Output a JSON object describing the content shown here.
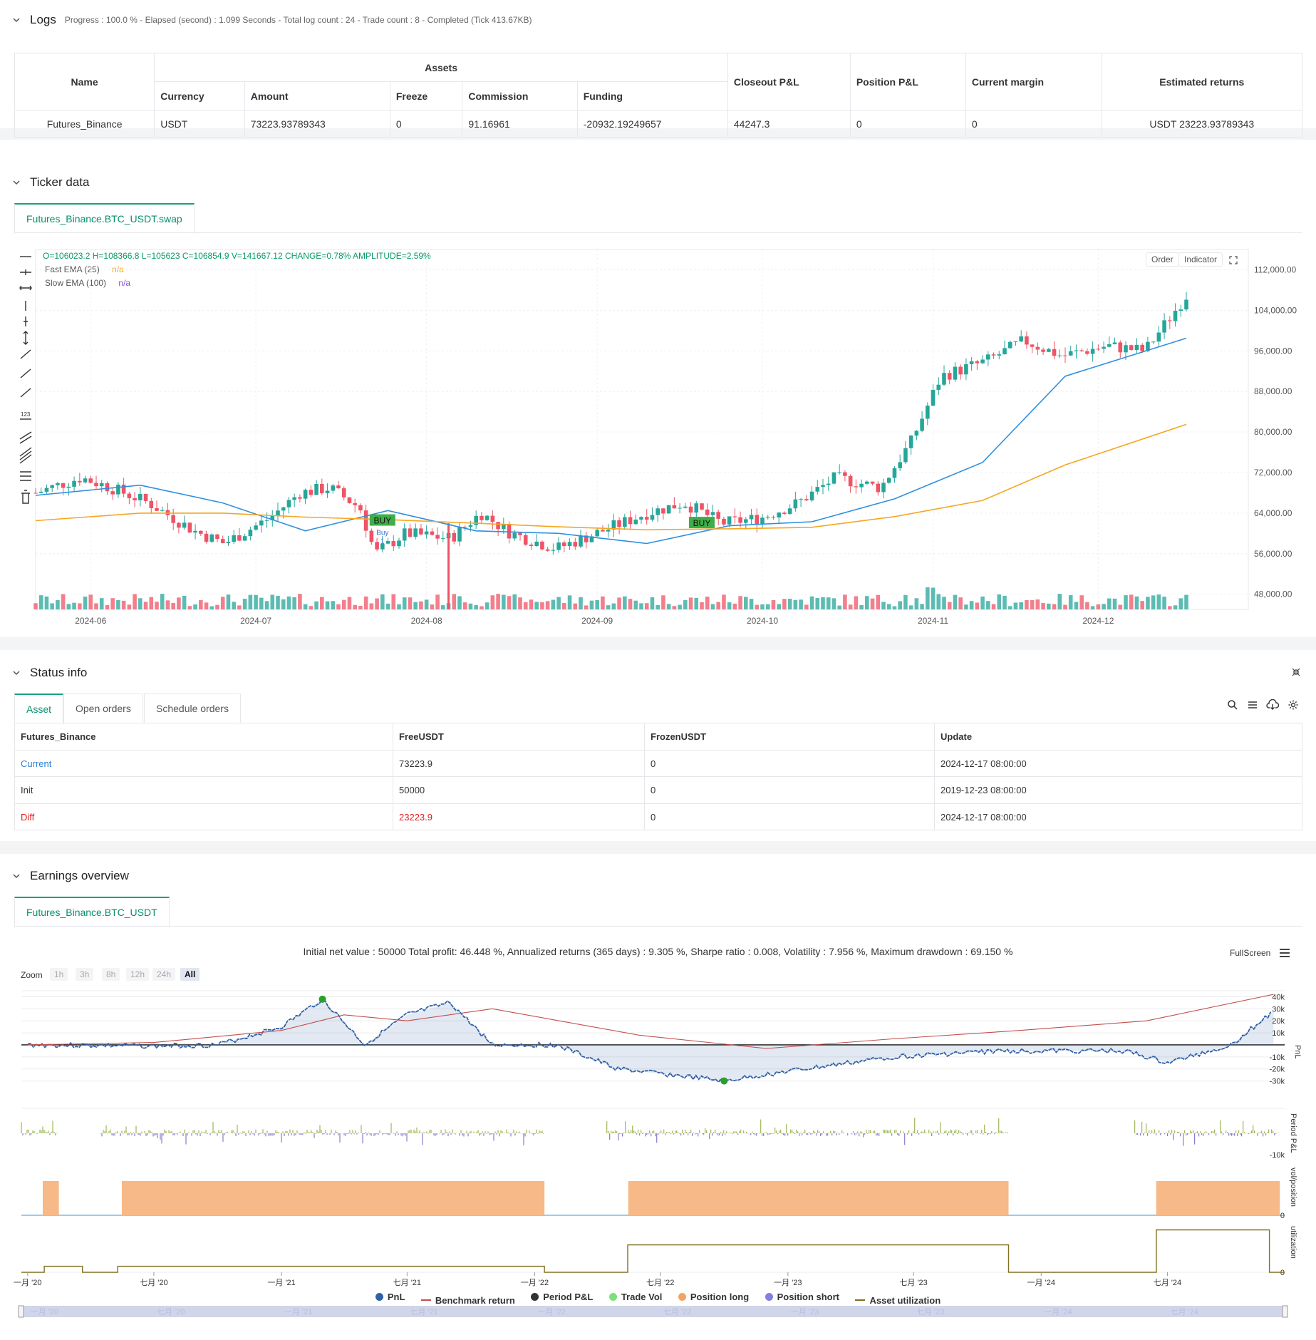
{
  "logs": {
    "title": "Logs",
    "summary": "Progress : 100.0 % - Elapsed (second) : 1.099  Seconds - Total log count : 24 - Trade count : 8 - Completed (Tick 413.67KB)",
    "table": {
      "h_name": "Name",
      "h_assets": "Assets",
      "h_currency": "Currency",
      "h_amount": "Amount",
      "h_freeze": "Freeze",
      "h_commission": "Commission",
      "h_funding": "Funding",
      "h_closeout": "Closeout P&L",
      "h_position": "Position P&L",
      "h_margin": "Current margin",
      "h_returns": "Estimated returns",
      "row": {
        "name": "Futures_Binance",
        "currency": "USDT",
        "amount": "73223.93789343",
        "freeze": "0",
        "commission": "91.16961",
        "funding": "-20932.19249657",
        "closeout": "44247.3",
        "position": "0",
        "margin": "0",
        "returns": "USDT 23223.93789343"
      }
    }
  },
  "ticker": {
    "title": "Ticker data",
    "tab": "Futures_Binance.BTC_USDT.swap",
    "ohlc": "O=106023.2 H=108366.8 L=105623 C=106854.9 V=141667.12 CHANGE=0.78% AMPLITUDE=2.59%",
    "fast_label": "Fast EMA (25)",
    "fast_val": "n/a",
    "slow_label": "Slow EMA (100)",
    "slow_val": "n/a",
    "order_btn": "Order",
    "indicator_btn": "Indicator",
    "buy1": "BUY",
    "buy1_sub": "Buy",
    "buy1_sub2": "1",
    "buy2": "BUY",
    "colors": {
      "up": "#26a69a",
      "down": "#ef5366",
      "fast": "#2f8fe0",
      "slow": "#f5a623"
    }
  },
  "chart_data": [
    {
      "type": "candlestick",
      "y_ticks": [
        "112,000.00",
        "104,000.00",
        "96,000.00",
        "88,000.00",
        "80,000.00",
        "72,000.00",
        "64,000.00",
        "56,000.00",
        "48,000.00"
      ],
      "ylim": [
        45000,
        116000
      ],
      "x_ticks": [
        "2024-06",
        "2024-07",
        "2024-08",
        "2024-09",
        "2024-10",
        "2024-11",
        "2024-12"
      ],
      "series": [
        {
          "name": "Fast EMA (25)",
          "x": [
            "2024-05-22",
            "2024-06-10",
            "2024-06-25",
            "2024-07-10",
            "2024-07-25",
            "2024-08-10",
            "2024-08-25",
            "2024-09-10",
            "2024-09-25",
            "2024-10-10",
            "2024-10-25",
            "2024-11-10",
            "2024-11-25",
            "2024-12-17"
          ],
          "values": [
            67500,
            69500,
            66000,
            60500,
            64500,
            60500,
            60000,
            58000,
            61500,
            62300,
            66800,
            74000,
            91000,
            98500
          ]
        },
        {
          "name": "Slow EMA (100)",
          "x": [
            "2024-05-22",
            "2024-06-10",
            "2024-06-25",
            "2024-07-10",
            "2024-07-25",
            "2024-08-10",
            "2024-08-25",
            "2024-09-10",
            "2024-09-25",
            "2024-10-10",
            "2024-10-25",
            "2024-11-10",
            "2024-11-25",
            "2024-12-17"
          ],
          "values": [
            62500,
            64000,
            64000,
            63200,
            62700,
            62000,
            61300,
            60700,
            60900,
            61200,
            63300,
            66500,
            73500,
            81500
          ]
        }
      ]
    },
    {
      "type": "line",
      "title": "Initial net value : 50000 Total profit: 46.448 %, Annualized returns (365 days) : 9.305 %, Sharpe ratio : 0.008, Volatility : 7.956 %, Maximum drawdown : 69.150 %",
      "x_ticks": [
        "一月 '20",
        "七月 '20",
        "一月 '21",
        "七月 '21",
        "一月 '22",
        "七月 '22",
        "一月 '23",
        "七月 '23",
        "一月 '24",
        "七月 '24"
      ],
      "y_ticks": [
        "40k",
        "30k",
        "20k",
        "10k",
        "0",
        "-10k",
        "-20k",
        "-30k"
      ],
      "ylabel": "PnL",
      "series": [
        {
          "name": "PnL",
          "x": [
            "2020-01",
            "2020-07",
            "2020-10",
            "2021-01",
            "2021-03",
            "2021-05",
            "2021-07",
            "2021-09",
            "2021-11",
            "2022-02",
            "2022-05",
            "2022-08",
            "2022-10",
            "2023-01",
            "2023-06",
            "2023-11",
            "2024-05",
            "2024-07",
            "2024-10",
            "2024-12"
          ],
          "values": [
            0,
            -1000,
            0,
            15000,
            38000,
            0,
            25000,
            35000,
            0,
            0,
            -20000,
            -26000,
            -30000,
            -22000,
            -10000,
            -5000,
            -5000,
            -15000,
            0,
            28000
          ]
        },
        {
          "name": "Benchmark return",
          "x": [
            "2020-01",
            "2020-07",
            "2021-01",
            "2021-04",
            "2021-07",
            "2021-11",
            "2022-06",
            "2022-12",
            "2023-06",
            "2023-12",
            "2024-06",
            "2024-12"
          ],
          "values": [
            0,
            2000,
            12000,
            25000,
            20000,
            30000,
            8000,
            -3000,
            5000,
            12000,
            20000,
            42000
          ]
        }
      ]
    }
  ],
  "status": {
    "title": "Status info",
    "tabs": [
      "Asset",
      "Open orders",
      "Schedule orders"
    ],
    "cols": [
      "Futures_Binance",
      "FreeUSDT",
      "FrozenUSDT",
      "Update"
    ],
    "rows": [
      {
        "label": "Current",
        "free": "73223.9",
        "frozen": "0",
        "update": "2024-12-17 08:00:00"
      },
      {
        "label": "Init",
        "free": "50000",
        "frozen": "0",
        "update": "2019-12-23 08:00:00"
      },
      {
        "label": "Diff",
        "free": "23223.9",
        "frozen": "0",
        "update": "2024-12-17 08:00:00"
      }
    ]
  },
  "earnings": {
    "title": "Earnings overview",
    "tab": "Futures_Binance.BTC_USDT",
    "fullscreen": "FullScreen",
    "zoom_label": "Zoom",
    "zoom": [
      "1h",
      "3h",
      "8h",
      "12h",
      "24h",
      "All"
    ],
    "axis_labels": {
      "pnl": "PnL",
      "period": "Period P&L",
      "vol": "vol/position",
      "util": "utilization",
      "period_tick": "-10k",
      "zero": "0"
    },
    "legend": [
      "PnL",
      "Benchmark return",
      "Period P&L",
      "Trade Vol",
      "Position long",
      "Position short",
      "Asset utilization"
    ],
    "legend_colors": [
      "#3060a8",
      "#c0504d",
      "#333333",
      "#7be07b",
      "#f4a460",
      "#8080e0",
      "#807020"
    ]
  }
}
